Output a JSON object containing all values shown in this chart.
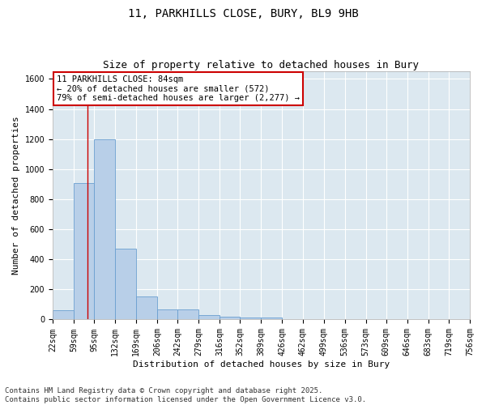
{
  "title1": "11, PARKHILLS CLOSE, BURY, BL9 9HB",
  "title2": "Size of property relative to detached houses in Bury",
  "xlabel": "Distribution of detached houses by size in Bury",
  "ylabel": "Number of detached properties",
  "bin_labels": [
    "22sqm",
    "59sqm",
    "95sqm",
    "132sqm",
    "169sqm",
    "206sqm",
    "242sqm",
    "279sqm",
    "316sqm",
    "352sqm",
    "389sqm",
    "426sqm",
    "462sqm",
    "499sqm",
    "536sqm",
    "573sqm",
    "609sqm",
    "646sqm",
    "683sqm",
    "719sqm",
    "756sqm"
  ],
  "bin_edges": [
    22,
    59,
    95,
    132,
    169,
    206,
    242,
    279,
    316,
    352,
    389,
    426,
    462,
    499,
    536,
    573,
    609,
    646,
    683,
    719,
    756
  ],
  "bar_heights": [
    60,
    910,
    1200,
    470,
    155,
    65,
    65,
    30,
    20,
    15,
    15,
    0,
    0,
    0,
    0,
    0,
    0,
    0,
    0,
    0
  ],
  "bar_color": "#b8cfe8",
  "bar_edge_color": "#6a9fd0",
  "vline_x": 84,
  "vline_color": "#cc0000",
  "annotation_text": "11 PARKHILLS CLOSE: 84sqm\n← 20% of detached houses are smaller (572)\n79% of semi-detached houses are larger (2,277) →",
  "annotation_box_color": "#ffffff",
  "annotation_box_edge": "#cc0000",
  "ylim": [
    0,
    1650
  ],
  "yticks": [
    0,
    200,
    400,
    600,
    800,
    1000,
    1200,
    1400,
    1600
  ],
  "bg_color": "#dce8f0",
  "fig_color": "#ffffff",
  "grid_color": "#ffffff",
  "footnote": "Contains HM Land Registry data © Crown copyright and database right 2025.\nContains public sector information licensed under the Open Government Licence v3.0.",
  "title1_fontsize": 10,
  "title2_fontsize": 9,
  "xlabel_fontsize": 8,
  "ylabel_fontsize": 8,
  "tick_fontsize": 7,
  "annotation_fontsize": 7.5,
  "footnote_fontsize": 6.5
}
